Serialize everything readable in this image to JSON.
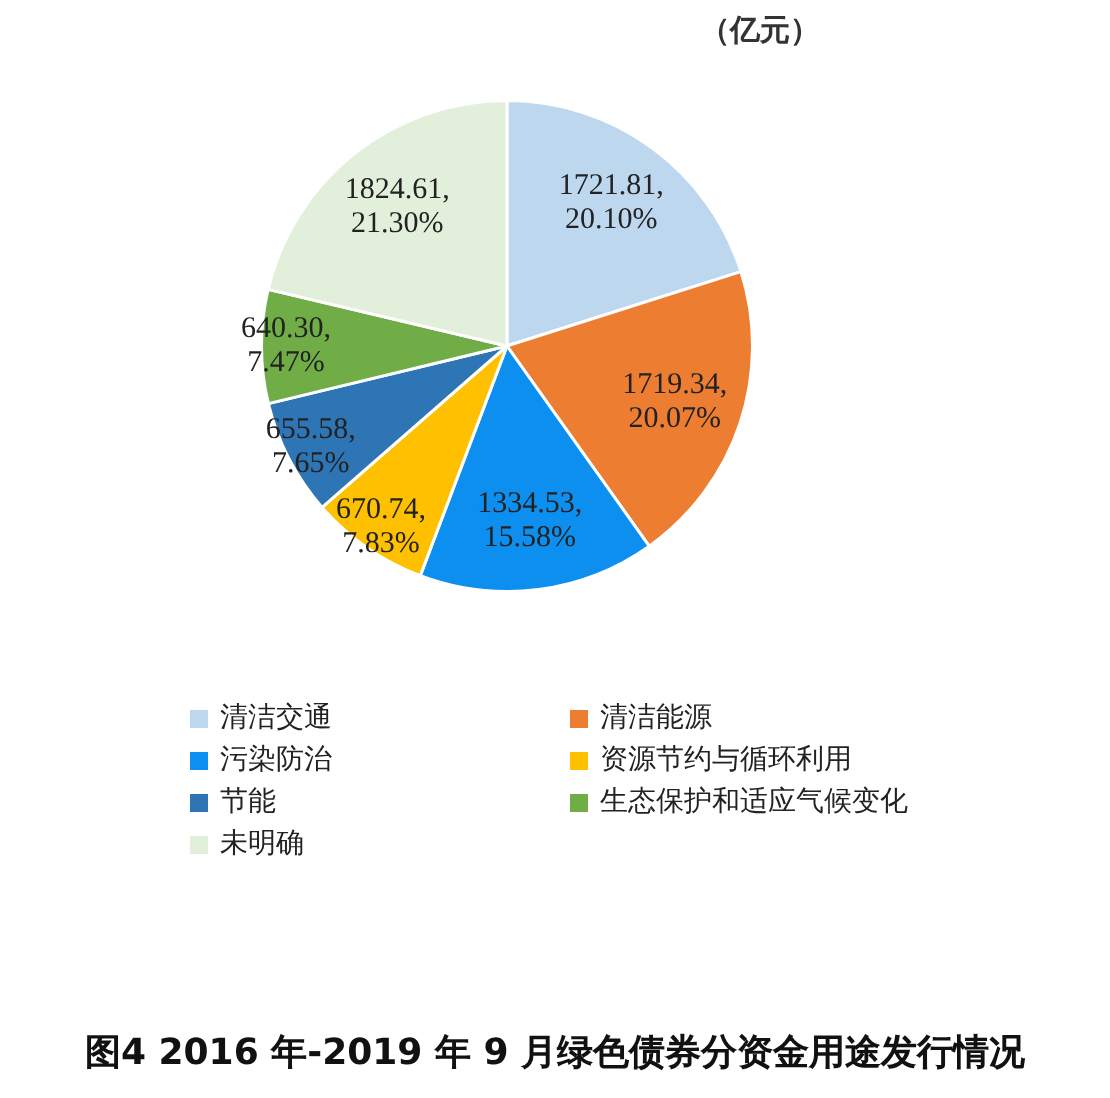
{
  "chart_data": {
    "type": "pie",
    "title": "图4 2016 年-2019 年 9 月绿色债券分资金用途发行情况",
    "annotations": [
      "（亿元）"
    ],
    "categories": [
      "清洁交通",
      "清洁能源",
      "污染防治",
      "资源节约与循环利用",
      "节能",
      "生态保护和适应气候变化",
      "未明确"
    ],
    "values": [
      1721.81,
      1719.34,
      1334.53,
      670.74,
      655.58,
      640.3,
      1824.61
    ],
    "value_labels": [
      "1721.81,\n20.10%",
      "1719.34,\n20.07%",
      "1334.53,\n15.58%",
      "670.74,\n7.83%",
      "655.58,\n7.65%",
      "640.30,\n7.47%",
      "1824.61,\n21.30%"
    ],
    "colors": [
      "#bdd7ee",
      "#ed7d31",
      "#0d8ff0",
      "#ffc000",
      "#2e75b6",
      "#70ad47",
      "#e2efda"
    ],
    "legend": "bottom"
  }
}
